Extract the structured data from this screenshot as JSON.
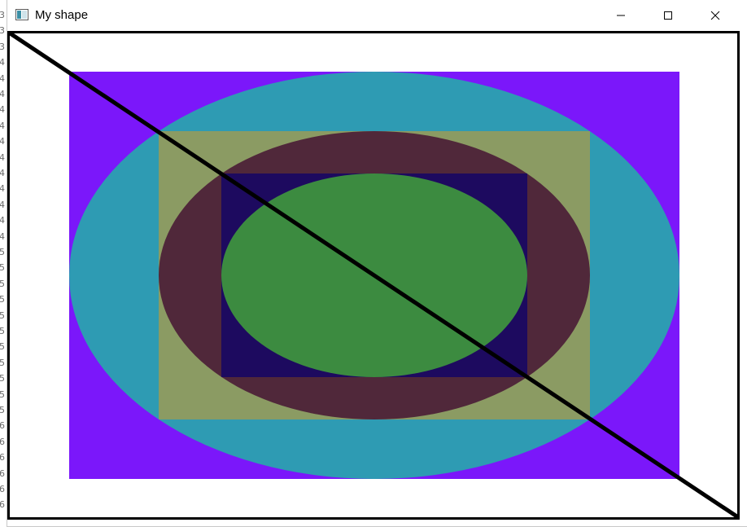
{
  "window": {
    "title": "My shape",
    "app_icon": "window-app-icon",
    "controls": {
      "minimize_icon": "minimize-icon",
      "maximize_icon": "maximize-icon",
      "close_icon": "close-icon"
    }
  },
  "background_gutter": {
    "line_numbers": [
      "3",
      "3",
      "3",
      "4",
      "4",
      "4",
      "4",
      "4",
      "4",
      "4",
      "4",
      "4",
      "4",
      "4",
      "4",
      "5",
      "5",
      "5",
      "5",
      "5",
      "5",
      "5",
      "5",
      "5",
      "5",
      "5",
      "6",
      "6",
      "6",
      "6",
      "6",
      "6"
    ]
  },
  "canvas": {
    "background": "#ffffff",
    "border_color": "#000000",
    "shapes": {
      "outer_rect": "#7b17fa",
      "outer_ellipse": "#2e9bb3",
      "mid_rect": "#8b9b63",
      "mid_ellipse": "#50283a",
      "inner_rect": "#1d0a5f",
      "inner_ellipse": "#3c8b40",
      "diagonal_line": "#000000"
    }
  }
}
